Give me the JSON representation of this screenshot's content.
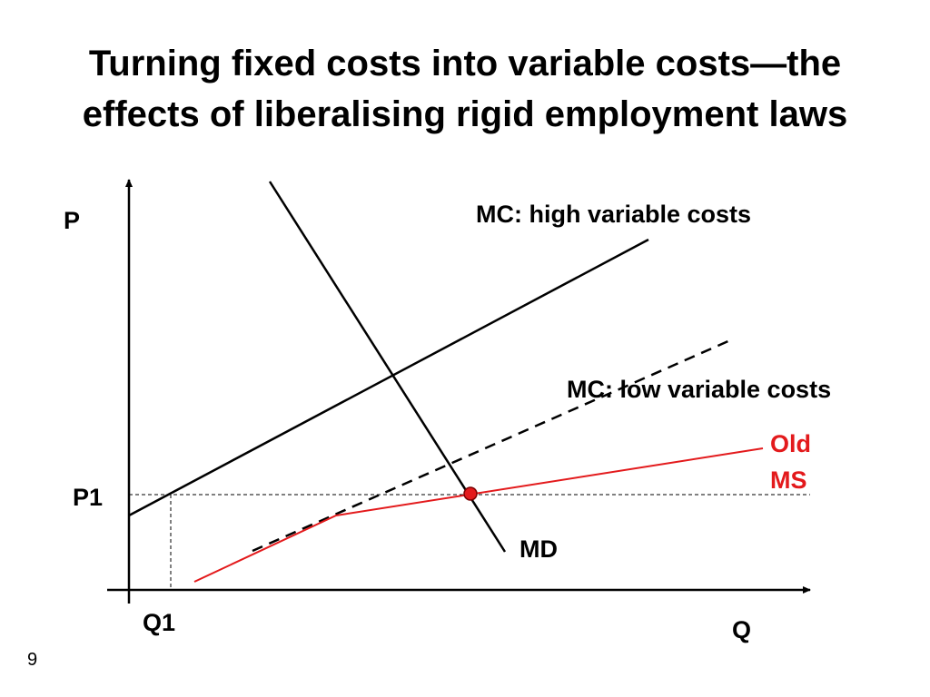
{
  "slide": {
    "title_line1": "Turning fixed costs into variable costs—the",
    "title_line2": "effects of liberalising rigid employment laws",
    "page_number": "9"
  },
  "diagram": {
    "axis_labels": {
      "y": "P",
      "x": "Q"
    },
    "price_label": "P1",
    "quantity_label": "Q1",
    "curves": {
      "mc_high": "MC: high variable costs",
      "mc_low": "MC: low variable costs",
      "old_ms_line1": "Old",
      "old_ms_line2": "MS",
      "md": "MD"
    },
    "colors": {
      "line": "#000000",
      "old_ms": "#e31a1c",
      "equilibrium_point": "#e31a1c"
    }
  }
}
